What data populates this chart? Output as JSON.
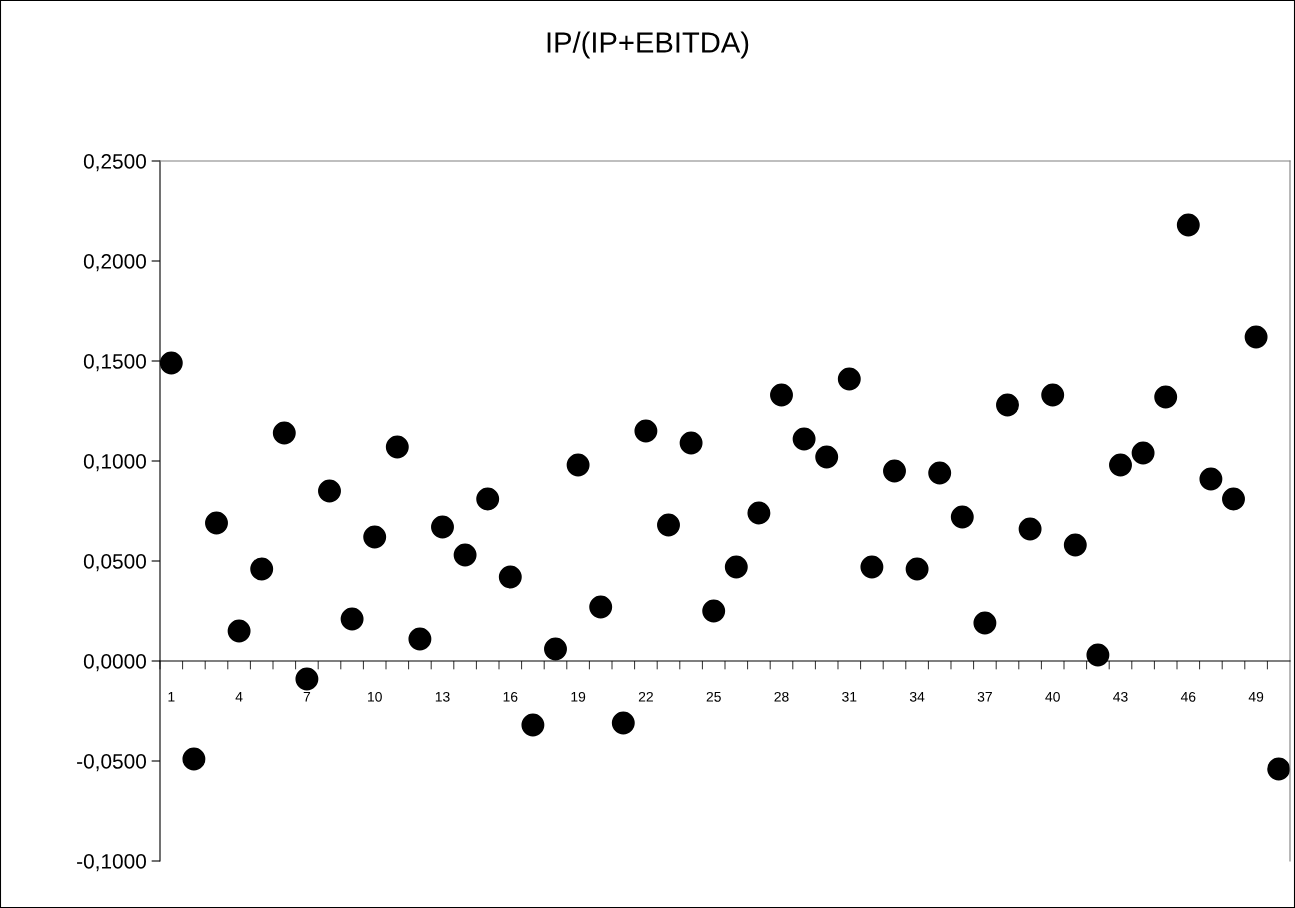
{
  "chart_data": {
    "type": "scatter",
    "title": "IP/(IP+EBITDA)",
    "categories": [
      "1",
      null,
      null,
      "4",
      null,
      null,
      "7",
      null,
      null,
      "10",
      null,
      null,
      "13",
      null,
      null,
      "16",
      null,
      null,
      "19",
      null,
      null,
      "22",
      null,
      null,
      "25",
      null,
      null,
      "28",
      null,
      null,
      "31",
      null,
      null,
      "34",
      null,
      null,
      "37",
      null,
      null,
      "40",
      null,
      null,
      "43",
      null,
      null,
      "46",
      null,
      null,
      "49",
      null
    ],
    "series": [
      {
        "color": "#000000",
        "values": [
          0.149,
          -0.049,
          0.069,
          0.015,
          0.046,
          0.114,
          -0.009,
          0.085,
          0.021,
          0.062,
          0.107,
          0.011,
          0.067,
          0.053,
          0.081,
          0.042,
          -0.032,
          0.006,
          0.098,
          0.027,
          -0.031,
          0.115,
          0.068,
          0.109,
          0.025,
          0.047,
          0.074,
          0.133,
          0.111,
          0.102,
          0.141,
          0.047,
          0.095,
          0.046,
          0.094,
          0.072,
          0.019,
          0.128,
          0.066,
          0.133,
          0.058,
          0.003,
          0.098,
          0.104,
          0.132,
          0.218,
          0.091,
          0.081,
          0.162,
          -0.054
        ]
      }
    ],
    "ylim": [
      -0.1,
      0.25
    ],
    "yticks": [
      {
        "value": -0.1,
        "label": "-0,1000"
      },
      {
        "value": -0.05,
        "label": "-0,0500"
      },
      {
        "value": 0,
        "label": "0,0000"
      },
      {
        "value": 0.05,
        "label": "0,0500"
      },
      {
        "value": 0.1,
        "label": "0,1000"
      },
      {
        "value": 0.15,
        "label": "0,1500"
      },
      {
        "value": 0.2,
        "label": "0,2000"
      },
      {
        "value": 0.25,
        "label": "0,2500"
      }
    ],
    "marker": "circle",
    "grid": false,
    "legend": false
  }
}
